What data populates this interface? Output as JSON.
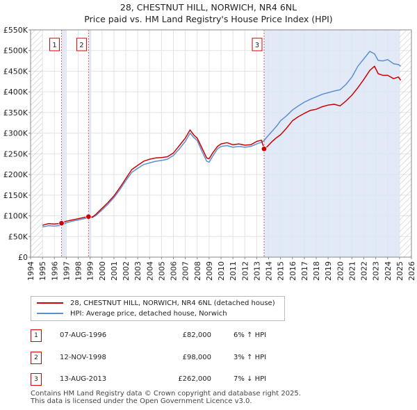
{
  "title": "28, CHESTNUT HILL, NORWICH, NR4 6NL",
  "subtitle": "Price paid vs. HM Land Registry's House Price Index (HPI)",
  "colors": {
    "property": "#cc0000",
    "hpi": "#5b8fd0",
    "shade": "#dce6f5",
    "marker": "#cc0000"
  },
  "chart_data": {
    "type": "line",
    "title": "28, CHESTNUT HILL, NORWICH, NR4 6NL",
    "subtitle": "Price paid vs. HM Land Registry's House Price Index (HPI)",
    "xlim": [
      1994,
      2026
    ],
    "ylim": [
      0,
      550000
    ],
    "y_ticks": [
      {
        "value": 0,
        "label": "£0"
      },
      {
        "value": 50000,
        "label": "£50K"
      },
      {
        "value": 100000,
        "label": "£100K"
      },
      {
        "value": 150000,
        "label": "£150K"
      },
      {
        "value": 200000,
        "label": "£200K"
      },
      {
        "value": 250000,
        "label": "£250K"
      },
      {
        "value": 300000,
        "label": "£300K"
      },
      {
        "value": 350000,
        "label": "£350K"
      },
      {
        "value": 400000,
        "label": "£400K"
      },
      {
        "value": 450000,
        "label": "£450K"
      },
      {
        "value": 500000,
        "label": "£500K"
      },
      {
        "value": 550000,
        "label": "£550K"
      }
    ],
    "x_ticks": [
      "1994",
      "1995",
      "1996",
      "1997",
      "1998",
      "1999",
      "2000",
      "2001",
      "2002",
      "2003",
      "2004",
      "2005",
      "2006",
      "2007",
      "2008",
      "2009",
      "2010",
      "2011",
      "2012",
      "2013",
      "2014",
      "2015",
      "2016",
      "2017",
      "2018",
      "2019",
      "2020",
      "2021",
      "2022",
      "2023",
      "2024",
      "2025",
      "2026"
    ],
    "grid": true,
    "shaded_ranges": [
      [
        1996.6,
        1996.97
      ],
      [
        1998.87,
        1999.1
      ],
      [
        2013.62,
        2025.0
      ]
    ],
    "hatched_ranges": [
      [
        1994,
        1995.0
      ],
      [
        2025.0,
        2026
      ]
    ],
    "series": [
      {
        "name": "28, CHESTNUT HILL, NORWICH, NR4 6NL (detached house)",
        "color": "#cc0000",
        "x": [
          1995.0,
          1995.5,
          1996.0,
          1996.6,
          1997.0,
          1997.5,
          1998.0,
          1998.5,
          1998.87,
          1999.2,
          1999.5,
          2000.0,
          2000.5,
          2001.0,
          2001.5,
          2002.0,
          2002.5,
          2003.0,
          2003.5,
          2004.0,
          2004.5,
          2005.0,
          2005.5,
          2006.0,
          2006.5,
          2007.0,
          2007.4,
          2007.7,
          2008.0,
          2008.4,
          2008.8,
          2009.0,
          2009.3,
          2009.7,
          2010.0,
          2010.5,
          2011.0,
          2011.5,
          2012.0,
          2012.5,
          2013.0,
          2013.4,
          2013.62,
          2013.9,
          2014.3,
          2014.7,
          2015.0,
          2015.5,
          2016.0,
          2016.5,
          2017.0,
          2017.5,
          2018.0,
          2018.5,
          2019.0,
          2019.5,
          2020.0,
          2020.5,
          2021.0,
          2021.5,
          2022.0,
          2022.5,
          2022.9,
          2023.2,
          2023.6,
          2024.0,
          2024.5,
          2024.9,
          2025.1
        ],
        "values": [
          77000,
          81000,
          80000,
          82000,
          87000,
          90000,
          93000,
          96000,
          98000,
          97000,
          104000,
          118000,
          132000,
          148000,
          168000,
          190000,
          212000,
          222000,
          232000,
          237000,
          240000,
          241000,
          243000,
          252000,
          270000,
          288000,
          308000,
          296000,
          288000,
          264000,
          240000,
          238000,
          252000,
          268000,
          274000,
          277000,
          272000,
          274000,
          271000,
          272000,
          280000,
          283000,
          262000,
          268000,
          280000,
          290000,
          296000,
          312000,
          330000,
          340000,
          348000,
          355000,
          358000,
          364000,
          368000,
          370000,
          366000,
          378000,
          392000,
          410000,
          430000,
          452000,
          462000,
          444000,
          440000,
          440000,
          432000,
          436000,
          428000
        ]
      },
      {
        "name": "HPI: Average price, detached house, Norwich",
        "color": "#5b8fd0",
        "x": [
          1995.0,
          1995.5,
          1996.0,
          1996.6,
          1997.0,
          1997.5,
          1998.0,
          1998.5,
          1998.87,
          1999.2,
          1999.5,
          2000.0,
          2000.5,
          2001.0,
          2001.5,
          2002.0,
          2002.5,
          2003.0,
          2003.5,
          2004.0,
          2004.5,
          2005.0,
          2005.5,
          2006.0,
          2006.5,
          2007.0,
          2007.4,
          2007.7,
          2008.0,
          2008.4,
          2008.8,
          2009.0,
          2009.3,
          2009.7,
          2010.0,
          2010.5,
          2011.0,
          2011.5,
          2012.0,
          2012.5,
          2013.0,
          2013.4,
          2013.62,
          2013.9,
          2014.3,
          2014.7,
          2015.0,
          2015.5,
          2016.0,
          2016.5,
          2017.0,
          2017.5,
          2018.0,
          2018.5,
          2019.0,
          2019.5,
          2020.0,
          2020.5,
          2021.0,
          2021.5,
          2022.0,
          2022.5,
          2022.9,
          2023.2,
          2023.6,
          2024.0,
          2024.5,
          2024.9,
          2025.1
        ],
        "values": [
          73000,
          76000,
          75000,
          77000,
          83000,
          87000,
          90000,
          93000,
          95000,
          96000,
          101000,
          114000,
          128000,
          144000,
          163000,
          185000,
          205000,
          215000,
          224000,
          228000,
          232000,
          234000,
          237000,
          246000,
          262000,
          280000,
          300000,
          290000,
          282000,
          256000,
          232000,
          230000,
          244000,
          262000,
          268000,
          270000,
          266000,
          268000,
          266000,
          268000,
          274000,
          278000,
          282000,
          292000,
          305000,
          318000,
          330000,
          342000,
          356000,
          366000,
          375000,
          382000,
          388000,
          394000,
          398000,
          402000,
          405000,
          418000,
          436000,
          462000,
          480000,
          498000,
          492000,
          476000,
          475000,
          478000,
          468000,
          466000,
          462000
        ]
      }
    ],
    "transactions": [
      {
        "id": "1",
        "x": 1996.6,
        "value": 82000
      },
      {
        "id": "2",
        "x": 1998.87,
        "value": 98000
      },
      {
        "id": "3",
        "x": 2013.62,
        "value": 262000
      }
    ]
  },
  "legend": {
    "property_label": "28, CHESTNUT HILL, NORWICH, NR4 6NL (detached house)",
    "hpi_label": "HPI: Average price, detached house, Norwich"
  },
  "transactions_table": [
    {
      "id": "1",
      "date": "07-AUG-1996",
      "price": "£82,000",
      "hpi": "6% ↑ HPI"
    },
    {
      "id": "2",
      "date": "12-NOV-1998",
      "price": "£98,000",
      "hpi": "3% ↑ HPI"
    },
    {
      "id": "3",
      "date": "13-AUG-2013",
      "price": "£262,000",
      "hpi": "7% ↓ HPI"
    }
  ],
  "footer": {
    "line1": "Contains HM Land Registry data © Crown copyright and database right 2025.",
    "line2": "This data is licensed under the Open Government Licence v3.0."
  }
}
